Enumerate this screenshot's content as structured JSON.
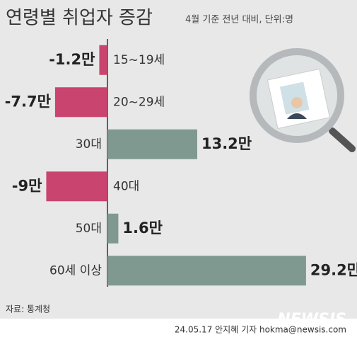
{
  "chart_data": {
    "type": "bar",
    "orientation": "horizontal",
    "title": "연령별 취업자 증감",
    "subtitle": "4월 기준 전년 대비, 단위:명",
    "categories": [
      "15~19세",
      "20~29세",
      "30대",
      "40대",
      "50대",
      "60세 이상"
    ],
    "values": [
      -1.2,
      -7.7,
      13.2,
      -9,
      1.6,
      29.2
    ],
    "value_labels": [
      "-1.2만",
      "-7.7만",
      "13.2만",
      "-9만",
      "1.6만",
      "29.2만"
    ],
    "negative_color": "#c9446f",
    "positive_color": "#7f9990",
    "source": "자료: 통계청",
    "watermark": "NEWSIS",
    "credit": "24.05.17 안지혜 기자 hokma@newsis.com"
  }
}
